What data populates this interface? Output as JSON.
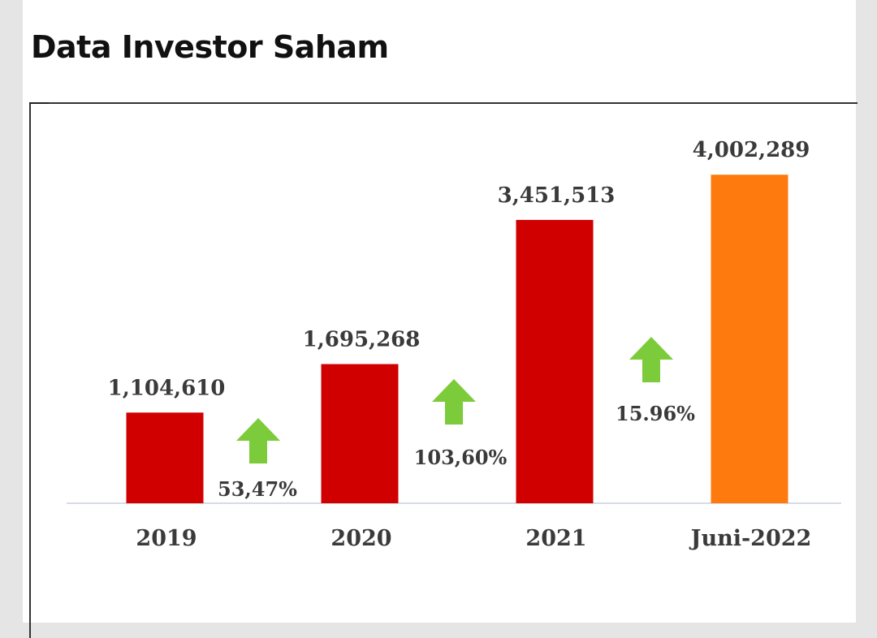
{
  "page": {
    "title": "Data Investor Saham"
  },
  "colors": {
    "bar_default": "#d10000",
    "bar_highlight": "#ff7a0e",
    "arrow": "#7ccb3a",
    "baseline": "#d6dbe4",
    "text": "#3a3a3a"
  },
  "chart_data": {
    "type": "bar",
    "title": "",
    "xlabel": "",
    "ylabel": "",
    "categories": [
      "2019",
      "2020",
      "2021",
      "Juni-2022"
    ],
    "values": [
      1104610,
      1695268,
      3451513,
      4002289
    ],
    "value_labels": [
      "1,104,610",
      "1,695,268",
      "3,451,513",
      "4,002,289"
    ],
    "growth_labels": [
      "53,47%",
      "103,60%",
      "15.96%"
    ],
    "growth_icon": "up-arrow-icon",
    "highlight_index": 3,
    "ylim": [
      0,
      4400000
    ],
    "grid": false,
    "legend": "none"
  }
}
